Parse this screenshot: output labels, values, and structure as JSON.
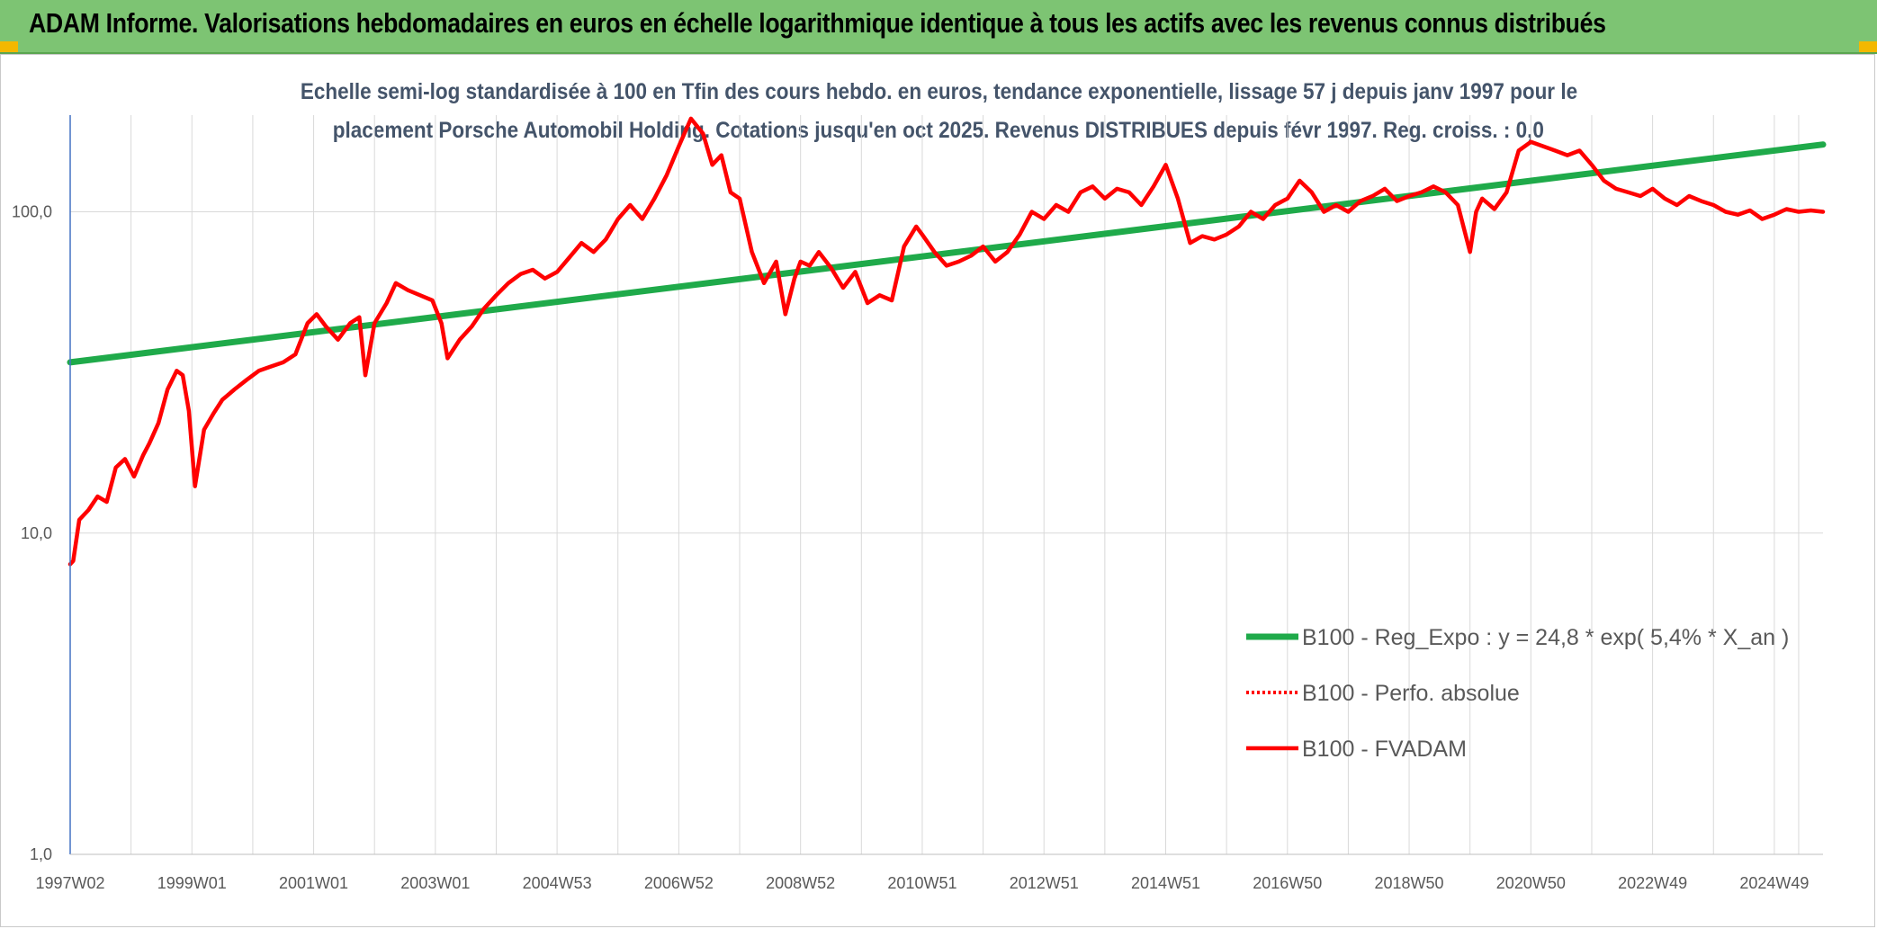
{
  "header": {
    "title": "ADAM Informe. Valorisations hebdomadaires en euros en échelle logarithmique identique à tous les actifs avec les revenus connus distribués"
  },
  "colors": {
    "header_bg": "#7dc473",
    "trend": "#1faa4a",
    "series": "#ff0000",
    "grid": "#d9d9d9",
    "text": "#595959",
    "subtitle": "#44546a"
  },
  "chart_data": {
    "type": "line",
    "title_line1": "Echelle semi-log standardisée à 100 en Tfin des cours hebdo. en euros, tendance exponentielle, lissage 57 j depuis janv 1997 pour le",
    "title_line2": "placement Porsche Automobil Holding. Cotations jusqu'en oct 2025. Revenus DISTRIBUES depuis févr 1997. Reg. croiss. : 0,0",
    "y_scale": "log",
    "ylim": [
      1,
      200
    ],
    "xlim": [
      1997.0,
      2025.8
    ],
    "grid": true,
    "y_ticks": [
      {
        "value": 1,
        "label": "1,0"
      },
      {
        "value": 10,
        "label": "10,0"
      },
      {
        "value": 100,
        "label": "100,0"
      }
    ],
    "x_ticks": [
      {
        "value": 1997.0,
        "label": "1997W02"
      },
      {
        "value": 1999.0,
        "label": "1999W01"
      },
      {
        "value": 2001.0,
        "label": "2001W01"
      },
      {
        "value": 2003.0,
        "label": "2003W01"
      },
      {
        "value": 2005.0,
        "label": "2004W53"
      },
      {
        "value": 2007.0,
        "label": "2006W52"
      },
      {
        "value": 2009.0,
        "label": "2008W52"
      },
      {
        "value": 2011.0,
        "label": "2010W51"
      },
      {
        "value": 2013.0,
        "label": "2012W51"
      },
      {
        "value": 2015.0,
        "label": "2014W51"
      },
      {
        "value": 2017.0,
        "label": "2016W50"
      },
      {
        "value": 2019.0,
        "label": "2018W50"
      },
      {
        "value": 2021.0,
        "label": "2020W50"
      },
      {
        "value": 2023.0,
        "label": "2022W49"
      },
      {
        "value": 2025.0,
        "label": "2024W49"
      }
    ],
    "legend_position": "right",
    "series": [
      {
        "name": "B100 - Reg_Expo : y = 24,8 * exp( 5,4% *  X_an )",
        "style": "solid-thick",
        "color": "#1faa4a",
        "x": [
          1997.0,
          2025.8
        ],
        "y": [
          34,
          162
        ]
      },
      {
        "name": "B100 - Perfo. absolue",
        "style": "dotted",
        "color": "#ff0000",
        "x": [],
        "y": []
      },
      {
        "name": "B100 - FVADAM",
        "style": "solid",
        "color": "#ff0000",
        "x": [
          1997.0,
          1997.05,
          1997.15,
          1997.3,
          1997.45,
          1997.6,
          1997.75,
          1997.9,
          1998.05,
          1998.2,
          1998.3,
          1998.45,
          1998.6,
          1998.75,
          1998.85,
          1998.95,
          1999.05,
          1999.2,
          1999.35,
          1999.5,
          1999.7,
          1999.9,
          2000.1,
          2000.3,
          2000.5,
          2000.7,
          2000.9,
          2001.05,
          2001.2,
          2001.4,
          2001.6,
          2001.75,
          2001.85,
          2002.0,
          2002.2,
          2002.35,
          2002.55,
          2002.75,
          2002.95,
          2003.1,
          2003.2,
          2003.4,
          2003.6,
          2003.8,
          2004.0,
          2004.2,
          2004.4,
          2004.6,
          2004.8,
          2005.0,
          2005.2,
          2005.4,
          2005.6,
          2005.8,
          2006.0,
          2006.2,
          2006.4,
          2006.6,
          2006.8,
          2007.0,
          2007.2,
          2007.4,
          2007.55,
          2007.7,
          2007.85,
          2008.0,
          2008.2,
          2008.4,
          2008.6,
          2008.75,
          2008.9,
          2009.0,
          2009.15,
          2009.3,
          2009.5,
          2009.7,
          2009.9,
          2010.1,
          2010.3,
          2010.5,
          2010.7,
          2010.9,
          2011.0,
          2011.2,
          2011.4,
          2011.6,
          2011.8,
          2012.0,
          2012.2,
          2012.4,
          2012.6,
          2012.8,
          2013.0,
          2013.2,
          2013.4,
          2013.6,
          2013.8,
          2014.0,
          2014.2,
          2014.4,
          2014.6,
          2014.8,
          2015.0,
          2015.2,
          2015.4,
          2015.6,
          2015.8,
          2016.0,
          2016.2,
          2016.4,
          2016.6,
          2016.8,
          2017.0,
          2017.2,
          2017.4,
          2017.6,
          2017.8,
          2018.0,
          2018.2,
          2018.4,
          2018.6,
          2018.8,
          2019.0,
          2019.2,
          2019.4,
          2019.6,
          2019.8,
          2020.0,
          2020.1,
          2020.2,
          2020.4,
          2020.6,
          2020.8,
          2021.0,
          2021.2,
          2021.4,
          2021.6,
          2021.8,
          2022.0,
          2022.2,
          2022.4,
          2022.6,
          2022.8,
          2023.0,
          2023.2,
          2023.4,
          2023.6,
          2023.8,
          2024.0,
          2024.2,
          2024.4,
          2024.6,
          2024.8,
          2025.0,
          2025.2,
          2025.4,
          2025.6,
          2025.8
        ],
        "y": [
          8.0,
          8.2,
          11.0,
          11.8,
          13.0,
          12.5,
          16.0,
          17.0,
          15.0,
          17.5,
          19.0,
          22.0,
          28.0,
          32.0,
          31.0,
          24.0,
          14.0,
          21.0,
          23.5,
          26.0,
          28.0,
          30.0,
          32.0,
          33.0,
          34.0,
          36.0,
          45.0,
          48.0,
          44.0,
          40.0,
          45.0,
          47.0,
          31.0,
          45.0,
          52.0,
          60.0,
          57.0,
          55.0,
          53.0,
          45.0,
          35.0,
          40.0,
          44.0,
          50.0,
          55.0,
          60.0,
          64.0,
          66.0,
          62.0,
          65.0,
          72.0,
          80.0,
          75.0,
          82.0,
          95.0,
          105.0,
          95.0,
          110.0,
          130.0,
          160.0,
          195.0,
          175.0,
          140.0,
          150.0,
          115.0,
          110.0,
          75.0,
          60.0,
          70.0,
          48.0,
          62.0,
          70.0,
          68.0,
          75.0,
          67.0,
          58.0,
          65.0,
          52.0,
          55.0,
          53.0,
          78.0,
          90.0,
          85.0,
          75.0,
          68.0,
          70.0,
          73.0,
          78.0,
          70.0,
          75.0,
          85.0,
          100.0,
          95.0,
          105.0,
          100.0,
          115.0,
          120.0,
          110.0,
          118.0,
          115.0,
          105.0,
          120.0,
          140.0,
          110.0,
          80.0,
          84.0,
          82.0,
          85.0,
          90.0,
          100.0,
          95.0,
          105.0,
          110.0,
          125.0,
          115.0,
          100.0,
          105.0,
          100.0,
          108.0,
          112.0,
          118.0,
          108.0,
          112.0,
          115.0,
          120.0,
          115.0,
          105.0,
          75.0,
          100.0,
          110.0,
          102.0,
          115.0,
          155.0,
          165.0,
          160.0,
          155.0,
          150.0,
          155.0,
          140.0,
          125.0,
          118.0,
          115.0,
          112.0,
          118.0,
          110.0,
          105.0,
          112.0,
          108.0,
          105.0,
          100.0,
          98.0,
          101.0,
          95.0,
          98.0,
          102.0,
          100.0,
          101.0,
          100.0
        ]
      }
    ]
  }
}
